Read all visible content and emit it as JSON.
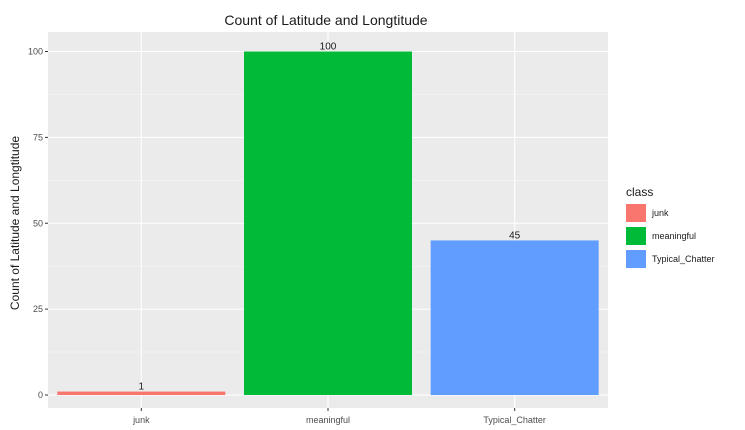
{
  "chart_data": {
    "type": "bar",
    "title": "Count of Latitude and Longtitude",
    "xlabel": "",
    "ylabel": "Count of Latitude and Longtitude",
    "categories": [
      "junk",
      "meaningful",
      "Typical_Chatter"
    ],
    "values": [
      1,
      100,
      45
    ],
    "data_labels": [
      "1",
      "100",
      "45"
    ],
    "colors": [
      "#F8766D",
      "#00BA38",
      "#619CFF"
    ],
    "ylim": [
      0,
      105
    ],
    "yticks": [
      0,
      25,
      50,
      75,
      100
    ],
    "ytick_labels": [
      "0",
      "25",
      "50",
      "75",
      "100"
    ],
    "grid": true,
    "panel_background": "#EBEBEB",
    "legend": {
      "title": "class",
      "position": "right",
      "entries": [
        "junk",
        "meaningful",
        "Typical_Chatter"
      ]
    }
  }
}
